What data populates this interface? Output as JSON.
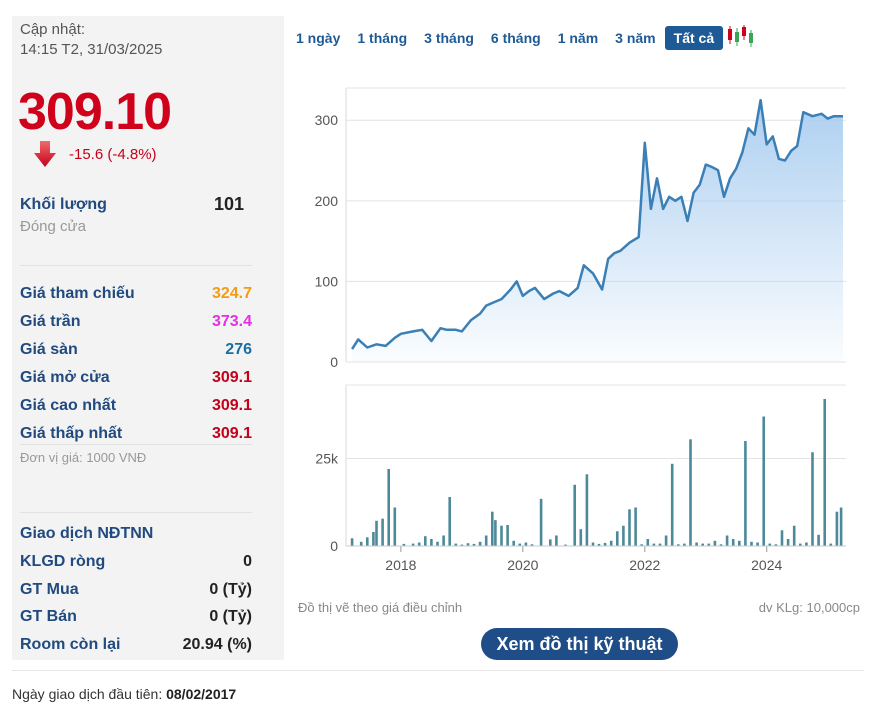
{
  "quote": {
    "update_label": "Cập nhật:",
    "update_time": "14:15 T2, 31/03/2025",
    "price": "309.10",
    "change": "-15.6 (-4.8%)",
    "volume_label": "Khối lượng",
    "volume_value": "101",
    "close_label": "Đóng cửa"
  },
  "prices": [
    {
      "label": "Giá tham chiếu",
      "value": "324.7",
      "color": "#f39c12"
    },
    {
      "label": "Giá trần",
      "value": "373.4",
      "color": "#e62ee6"
    },
    {
      "label": "Giá sàn",
      "value": "276",
      "color": "#1a6fa0"
    },
    {
      "label": "Giá mở cửa",
      "value": "309.1",
      "color": "#c4001a"
    },
    {
      "label": "Giá cao nhất",
      "value": "309.1",
      "color": "#c4001a"
    },
    {
      "label": "Giá thấp nhất",
      "value": "309.1",
      "color": "#c4001a"
    }
  ],
  "unit_note": "Đơn vị giá: 1000 VNĐ",
  "foreign": {
    "title": "Giao dịch NĐTNN",
    "rows": [
      {
        "label": "KLGD ròng",
        "value": "0"
      },
      {
        "label": "GT Mua",
        "value": "0 (Tỷ)"
      },
      {
        "label": "GT Bán",
        "value": "0 (Tỷ)"
      },
      {
        "label": "Room còn lại",
        "value": "20.94 (%)"
      }
    ]
  },
  "ranges": [
    "1 ngày",
    "1 tháng",
    "3 tháng",
    "6 tháng",
    "1 năm",
    "3 năm",
    "Tất cả"
  ],
  "active_range": "Tất cả",
  "colors": {
    "line": "#3a7fb5",
    "fill": "#a9cdf0",
    "bar": "#4c8a9a",
    "accent": "#1e4d87",
    "red": "#d0021b"
  },
  "chart_data": {
    "type": "area",
    "price_series": {
      "x": [
        2017.2,
        2017.3,
        2017.45,
        2017.6,
        2017.75,
        2017.9,
        2018.0,
        2018.2,
        2018.35,
        2018.5,
        2018.65,
        2018.75,
        2018.9,
        2019.0,
        2019.15,
        2019.3,
        2019.4,
        2019.55,
        2019.65,
        2019.8,
        2019.9,
        2020.0,
        2020.1,
        2020.2,
        2020.35,
        2020.5,
        2020.6,
        2020.75,
        2020.9,
        2021.0,
        2021.15,
        2021.3,
        2021.4,
        2021.5,
        2021.6,
        2021.75,
        2021.9,
        2022.0,
        2022.1,
        2022.2,
        2022.3,
        2022.4,
        2022.5,
        2022.6,
        2022.7,
        2022.8,
        2022.9,
        2023.0,
        2023.1,
        2023.2,
        2023.3,
        2023.4,
        2023.5,
        2023.6,
        2023.7,
        2023.8,
        2023.9,
        2024.0,
        2024.1,
        2024.2,
        2024.3,
        2024.4,
        2024.5,
        2024.6,
        2024.75,
        2024.9,
        2025.0,
        2025.1,
        2025.2,
        2025.25
      ],
      "y": [
        16,
        28,
        18,
        22,
        20,
        30,
        35,
        38,
        40,
        26,
        42,
        40,
        40,
        38,
        52,
        60,
        70,
        75,
        78,
        90,
        100,
        82,
        88,
        92,
        78,
        85,
        88,
        82,
        92,
        120,
        110,
        90,
        128,
        135,
        138,
        148,
        155,
        272,
        190,
        228,
        190,
        205,
        200,
        205,
        175,
        210,
        220,
        245,
        242,
        238,
        205,
        228,
        240,
        260,
        290,
        282,
        325,
        270,
        280,
        252,
        250,
        262,
        268,
        310,
        305,
        308,
        302,
        305,
        305,
        305
      ],
      "ylim": [
        0,
        340
      ],
      "yticks": [
        0,
        100,
        200,
        300
      ]
    },
    "volume_series": {
      "x": [
        2017.2,
        2017.35,
        2017.45,
        2017.55,
        2017.6,
        2017.7,
        2017.8,
        2017.9,
        2018.05,
        2018.2,
        2018.3,
        2018.4,
        2018.5,
        2018.6,
        2018.7,
        2018.8,
        2018.9,
        2019.0,
        2019.1,
        2019.2,
        2019.3,
        2019.4,
        2019.5,
        2019.55,
        2019.65,
        2019.75,
        2019.85,
        2019.95,
        2020.05,
        2020.15,
        2020.3,
        2020.45,
        2020.55,
        2020.7,
        2020.85,
        2020.95,
        2021.05,
        2021.15,
        2021.25,
        2021.35,
        2021.45,
        2021.55,
        2021.65,
        2021.75,
        2021.85,
        2021.95,
        2022.05,
        2022.15,
        2022.25,
        2022.35,
        2022.45,
        2022.55,
        2022.65,
        2022.75,
        2022.85,
        2022.95,
        2023.05,
        2023.15,
        2023.25,
        2023.35,
        2023.45,
        2023.55,
        2023.65,
        2023.75,
        2023.85,
        2023.95,
        2024.05,
        2024.15,
        2024.25,
        2024.35,
        2024.45,
        2024.55,
        2024.65,
        2024.75,
        2024.85,
        2024.95,
        2025.05,
        2025.15,
        2025.22
      ],
      "y": [
        2200,
        1200,
        2500,
        4000,
        7200,
        7800,
        22000,
        11000,
        600,
        700,
        1000,
        2800,
        2000,
        1200,
        3000,
        14000,
        700,
        400,
        800,
        600,
        1200,
        3000,
        9800,
        7400,
        5800,
        6000,
        1500,
        700,
        1000,
        500,
        13500,
        1900,
        3000,
        400,
        17500,
        4800,
        20500,
        1000,
        600,
        900,
        1500,
        4200,
        5800,
        10500,
        11000,
        500,
        2000,
        700,
        700,
        3000,
        23500,
        500,
        700,
        30500,
        1000,
        700,
        700,
        1500,
        500,
        3000,
        2000,
        1500,
        30000,
        1200,
        1000,
        37000,
        700,
        500,
        4500,
        2000,
        5800,
        700,
        1000,
        26800,
        3200,
        42000,
        700,
        9800,
        11000
      ],
      "ylim": [
        0,
        46000
      ],
      "yticks": [
        0,
        25000
      ],
      "ytick_labels": [
        "0",
        "25k"
      ]
    },
    "xticks": [
      2018,
      2020,
      2022,
      2024
    ],
    "xtick_labels": [
      "2018",
      "2020",
      "2022",
      "2024"
    ],
    "xlim": [
      2017.1,
      2025.3
    ],
    "grid": true,
    "note_left": "Đồ thị vẽ theo giá điều chỉnh",
    "note_right": "dv KLg: 10,000cp"
  },
  "tech_button": "Xem đồ thị kỹ thuật",
  "first_trade": {
    "label": "Ngày giao dịch đầu tiên:",
    "date": "08/02/2017"
  }
}
